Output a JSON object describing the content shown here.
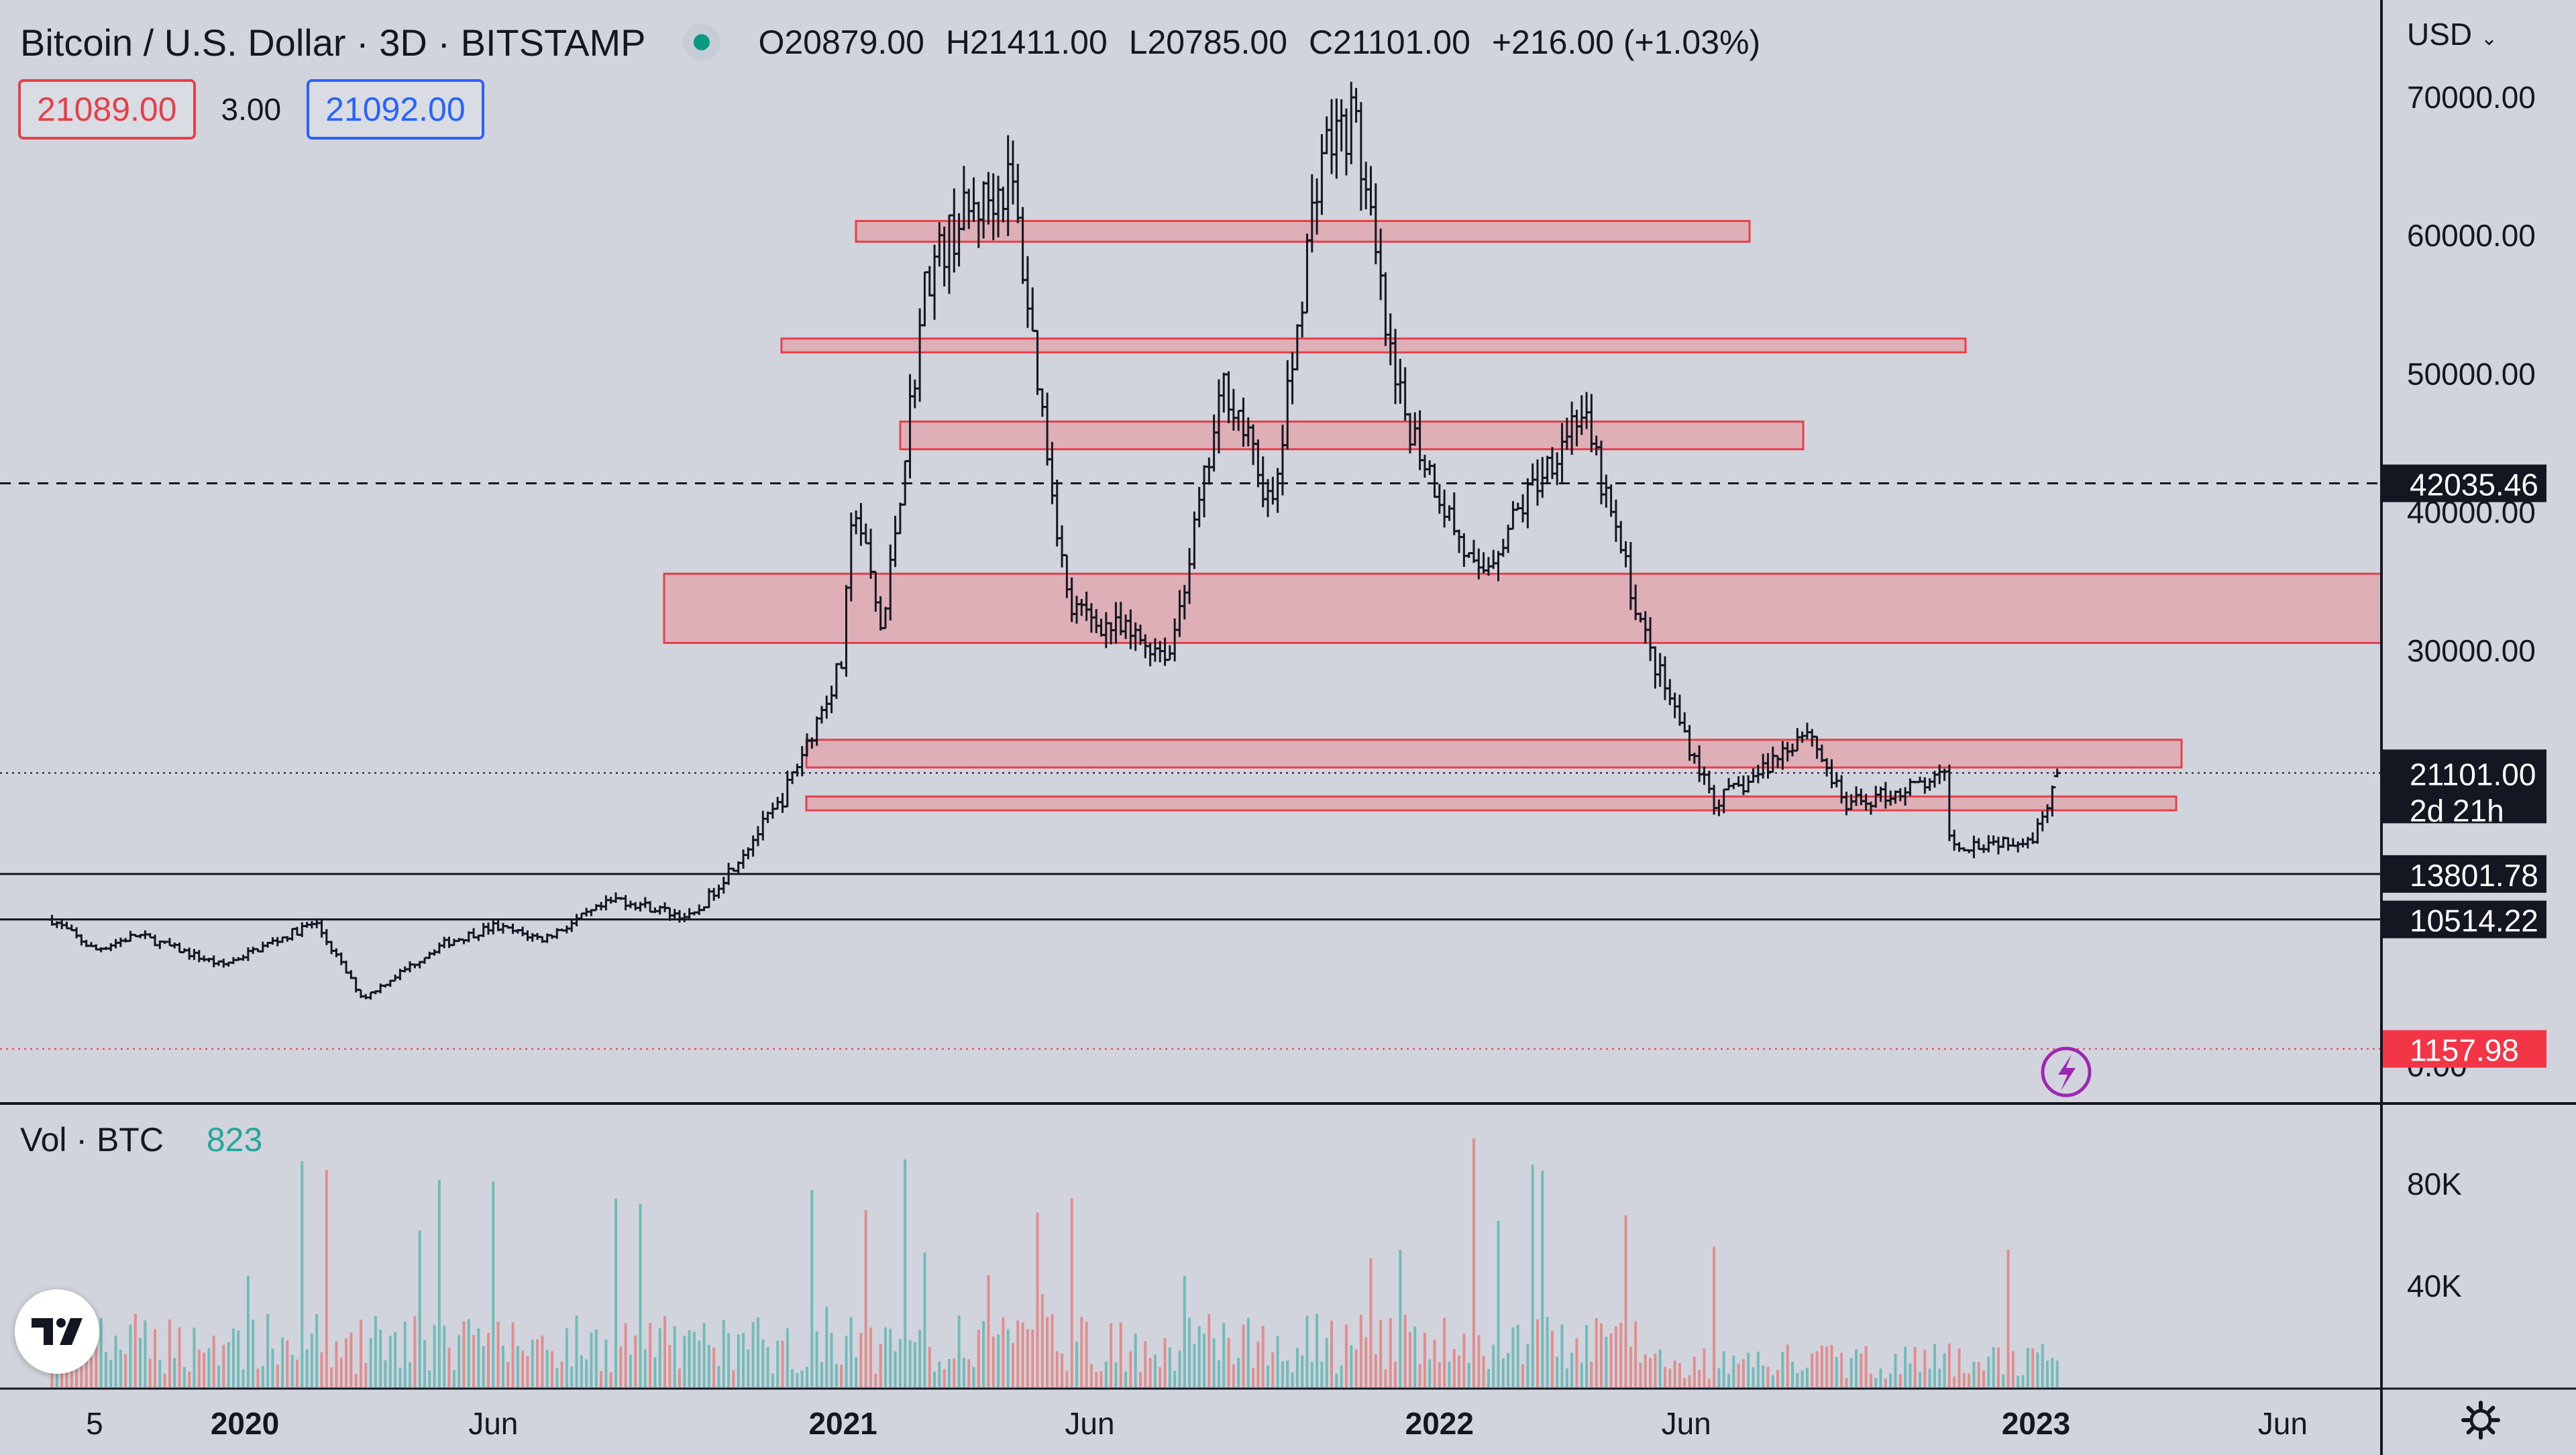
{
  "header": {
    "title": "Bitcoin / U.S. Dollar · 3D · BITSTAMP",
    "open": "O20879.00",
    "high": "H21411.00",
    "low": "L20785.00",
    "close": "C21101.00",
    "change": "+216.00 (+1.03%)"
  },
  "trade": {
    "sell": "21089.00",
    "spread": "3.00",
    "buy": "21092.00"
  },
  "currency": "USD",
  "volume": {
    "label": "Vol · BTC",
    "value": "823"
  },
  "price_tags": {
    "current_price": "21101.00",
    "countdown": "2d 21h",
    "dashed_level": "42035.46",
    "level_1": "13801.78",
    "level_2": "10514.22",
    "red_level": "1157.98"
  },
  "colors": {
    "background": "#d1d4dc",
    "zone_fill": "#e0a8b0",
    "zone_stroke": "#e5404a",
    "vol_up": "#26a69a",
    "vol_down": "#ef5350",
    "accent_red": "#f23645"
  },
  "icons": [
    "tradingview-logo-icon",
    "lightning-icon",
    "gear-icon",
    "chevron-down-icon"
  ],
  "chart_data": {
    "type": "candlestick",
    "title": "Bitcoin / U.S. Dollar · 3D · BITSTAMP",
    "x_ticks": [
      "2020",
      "Jun",
      "2021",
      "Jun",
      "2022",
      "Jun",
      "2023",
      "Jun"
    ],
    "y_ticks": [
      "70000.00",
      "60000.00",
      "50000.00",
      "40000.00",
      "30000.00"
    ],
    "y_ticks_partial": [
      "0.00"
    ],
    "volume_y_ticks": [
      "80K",
      "40K"
    ],
    "ylim": [
      0,
      72000
    ],
    "anchors": [
      [
        "2019-09-05",
        10500
      ],
      [
        "2019-10-01",
        8300
      ],
      [
        "2019-10-27",
        9400
      ],
      [
        "2019-12-18",
        7200
      ],
      [
        "2020-02-13",
        10300
      ],
      [
        "2020-03-13",
        4800
      ],
      [
        "2020-04-30",
        8700
      ],
      [
        "2020-06-01",
        10000
      ],
      [
        "2020-07-01",
        9100
      ],
      [
        "2020-08-16",
        12000
      ],
      [
        "2020-10-01",
        10600
      ],
      [
        "2020-11-24",
        19000
      ],
      [
        "2020-12-31",
        29000
      ],
      [
        "2021-01-08",
        41000
      ],
      [
        "2021-01-25",
        31000
      ],
      [
        "2021-02-21",
        57000
      ],
      [
        "2021-03-13",
        61000
      ],
      [
        "2021-04-14",
        64000
      ],
      [
        "2021-05-19",
        33000
      ],
      [
        "2021-06-26",
        31000
      ],
      [
        "2021-07-20",
        29800
      ],
      [
        "2021-08-23",
        49500
      ],
      [
        "2021-09-21",
        40000
      ],
      [
        "2021-10-20",
        66000
      ],
      [
        "2021-11-10",
        68500
      ],
      [
        "2021-12-04",
        49000
      ],
      [
        "2022-01-24",
        35000
      ],
      [
        "2022-03-28",
        47500
      ],
      [
        "2022-05-09",
        30000
      ],
      [
        "2022-06-18",
        19000
      ],
      [
        "2022-07-10",
        20500
      ],
      [
        "2022-08-14",
        24400
      ],
      [
        "2022-09-06",
        18700
      ],
      [
        "2022-11-06",
        20700
      ],
      [
        "2022-11-10",
        15800
      ],
      [
        "2022-12-31",
        16500
      ],
      [
        "2023-01-14",
        21101
      ]
    ],
    "resistance_zones": [
      {
        "low": 59500,
        "high": 61000
      },
      {
        "low": 51500,
        "high": 52500
      },
      {
        "low": 44500,
        "high": 46500
      },
      {
        "low": 30500,
        "high": 35500
      },
      {
        "low": 21500,
        "high": 23500
      },
      {
        "low": 18400,
        "high": 19400
      }
    ],
    "levels": {
      "dashed": 42035.46,
      "solid": [
        13801.78,
        10514.22
      ],
      "dotted_current": 21101.0,
      "dotted_red": 1157.98
    },
    "last": {
      "open": 20879.0,
      "high": 21411.0,
      "low": 20785.0,
      "close": 21101.0,
      "change": 216.0,
      "change_pct": 1.03
    }
  }
}
